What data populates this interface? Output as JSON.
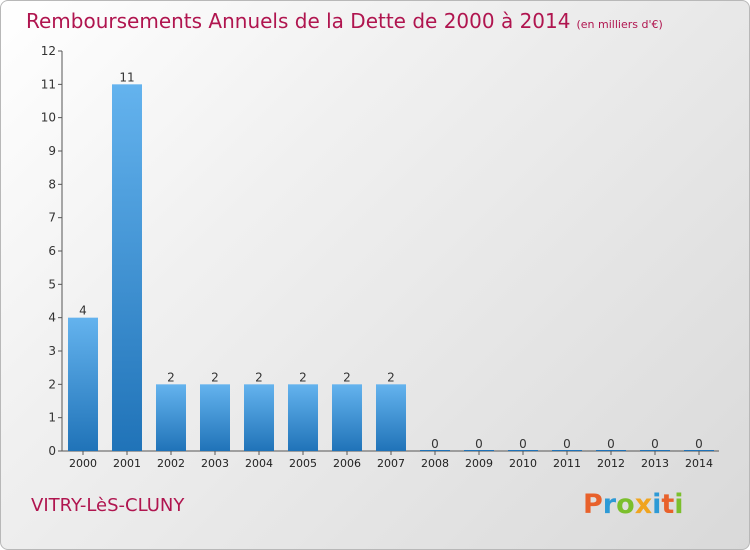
{
  "header": {
    "title": "Remboursements Annuels de la Dette de 2000 à 2014",
    "unit": "(en milliers d'€)"
  },
  "footer": {
    "city": "VITRY-LèS-CLUNY",
    "brand": "Proxiti"
  },
  "colors": {
    "title": "#b0154f",
    "bar_top": "#64b3ee",
    "bar_bottom": "#2073b8"
  },
  "chart_data": {
    "type": "bar",
    "title": "Remboursements Annuels de la Dette de 2000 à 2014",
    "subtitle": "(en milliers d'€)",
    "xlabel": "",
    "ylabel": "",
    "categories": [
      "2000",
      "2001",
      "2002",
      "2003",
      "2004",
      "2005",
      "2006",
      "2007",
      "2008",
      "2009",
      "2010",
      "2011",
      "2012",
      "2013",
      "2014"
    ],
    "values": [
      4,
      11,
      2,
      2,
      2,
      2,
      2,
      2,
      0,
      0,
      0,
      0,
      0,
      0,
      0
    ],
    "data_labels": [
      "4",
      "11",
      "2",
      "2",
      "2",
      "2",
      "2",
      "2",
      "0",
      "0",
      "0",
      "0",
      "0",
      "0",
      "0"
    ],
    "ylim": [
      0,
      12
    ],
    "yticks": [
      0,
      1,
      2,
      3,
      4,
      5,
      6,
      7,
      8,
      9,
      10,
      11,
      12
    ],
    "grid": false,
    "legend": "none"
  }
}
